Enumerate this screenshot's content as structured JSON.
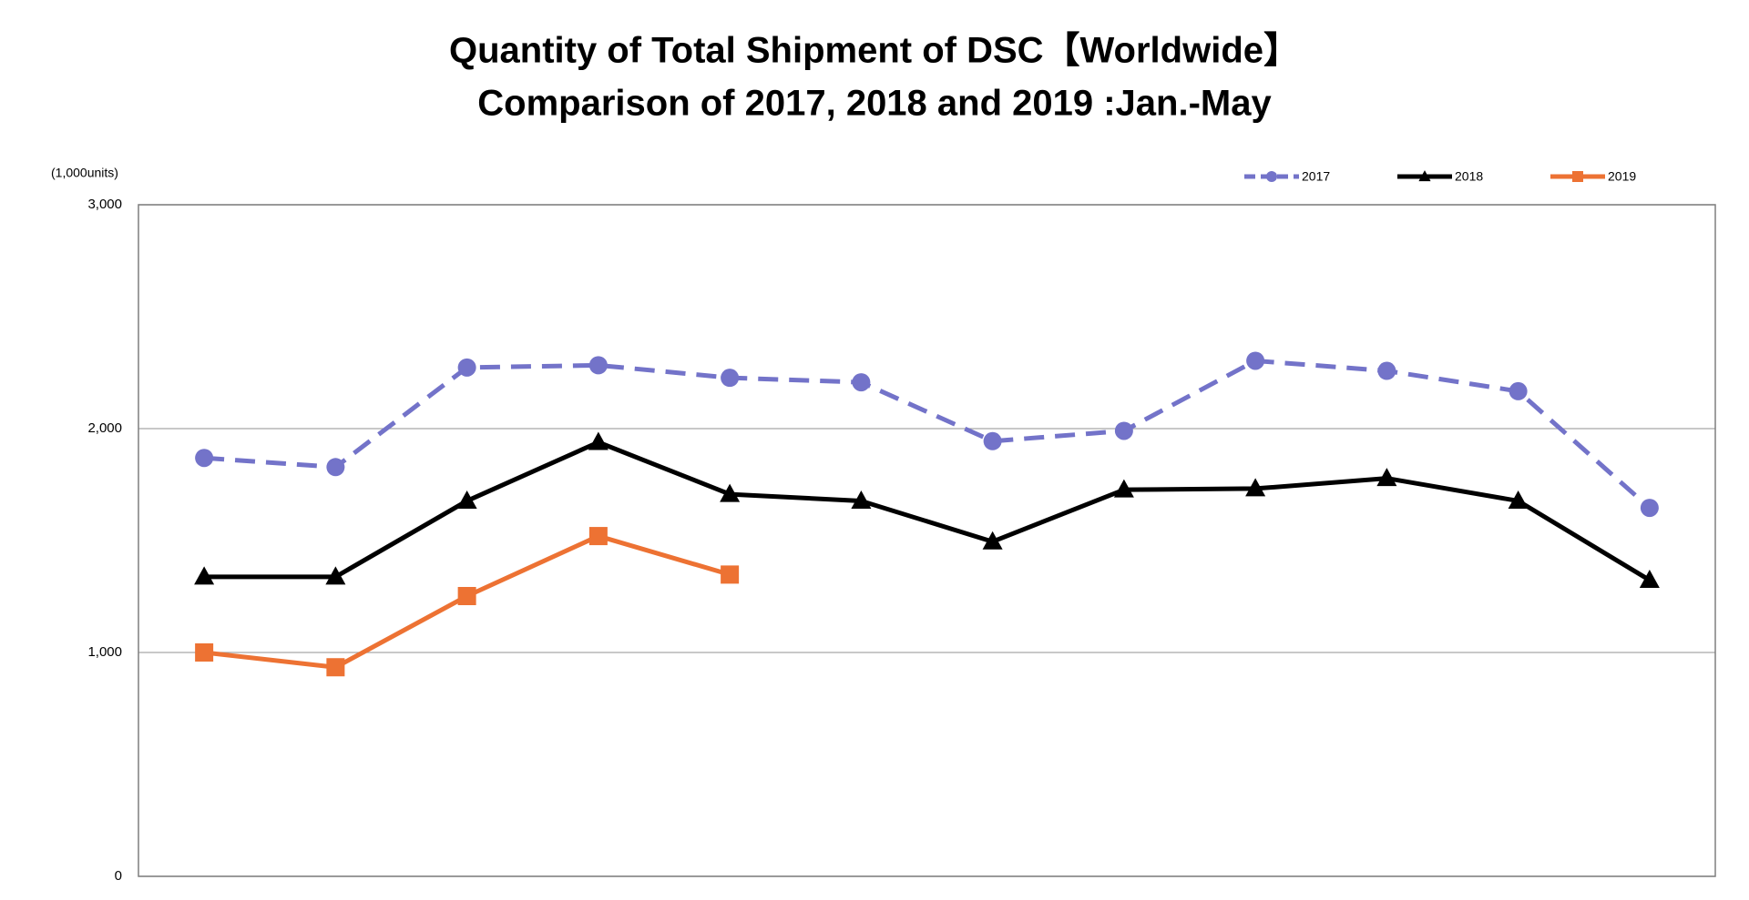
{
  "chart_data": {
    "type": "line",
    "title": [
      "Quantity of Total Shipment of DSC【Worldwide】",
      " Comparison of 2017, 2018 and 2019 :Jan.-May"
    ],
    "y_axis_label": "(1,000units)",
    "categories": [
      null,
      null,
      null,
      null,
      null,
      null,
      null,
      null,
      null,
      null,
      null,
      null
    ],
    "series": [
      {
        "name": "2017",
        "color": "#7373c9",
        "dash": true,
        "marker": "circle",
        "values": [
          1869,
          1828,
          2273,
          2283,
          2227,
          2207,
          1944,
          1990,
          2303,
          2258,
          2167,
          1646
        ]
      },
      {
        "name": "2018",
        "color": "#000000",
        "dash": false,
        "marker": "triangle",
        "values": [
          1338,
          1338,
          1677,
          1939,
          1707,
          1677,
          1495,
          1727,
          1732,
          1778,
          1677,
          1323
        ]
      },
      {
        "name": "2019",
        "color": "#ed7233",
        "dash": false,
        "marker": "square",
        "values": [
          1000,
          934,
          1252,
          1520,
          1348,
          null,
          null,
          null,
          null,
          null,
          null,
          null
        ]
      }
    ],
    "ylim": [
      0,
      3000
    ],
    "yticks": [
      {
        "value": 0,
        "label": "0"
      },
      {
        "value": 1000,
        "label": "1,000"
      },
      {
        "value": 2000,
        "label": "2,000"
      },
      {
        "value": 3000,
        "label": "3,000"
      }
    ],
    "grid": true,
    "legend": "top-right"
  }
}
